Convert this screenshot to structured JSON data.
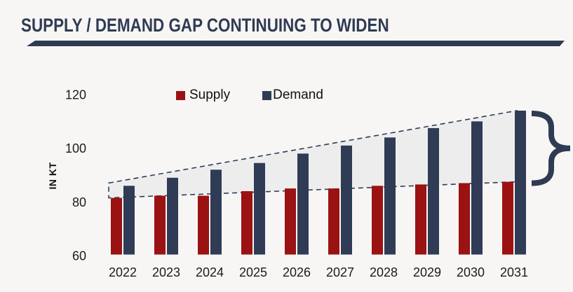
{
  "header": {
    "title": "SUPPLY / DEMAND GAP CONTINUING TO WIDEN"
  },
  "colors": {
    "supply": "#9b1212",
    "demand": "#303c55",
    "accent_navy": "#2e3b52",
    "band_border": "#2e3c55",
    "background": "#f7f6f5",
    "text": "#1b1b1b"
  },
  "chart_data": {
    "type": "bar",
    "title": "SUPPLY / DEMAND GAP CONTINUING TO WIDEN",
    "xlabel": "",
    "ylabel": "IN KT",
    "ylim": [
      60,
      120
    ],
    "yticks": [
      60,
      80,
      100,
      120
    ],
    "grid": false,
    "legend_position": "top-center",
    "categories": [
      "2022",
      "2023",
      "2024",
      "2025",
      "2026",
      "2027",
      "2028",
      "2029",
      "2030",
      "2031"
    ],
    "series": [
      {
        "name": "Supply",
        "color": "#9b1212",
        "values": [
          81.5,
          82.3,
          82.3,
          84,
          85,
          85,
          86,
          86.5,
          87,
          87.5
        ]
      },
      {
        "name": "Demand",
        "color": "#303c55",
        "values": [
          86,
          89,
          92,
          94.5,
          98,
          101,
          104,
          107.5,
          110,
          114
        ]
      }
    ],
    "annotations": {
      "gap_band": "dashed trapezoid spanning the supply-to-demand gap from 2022 to 2031",
      "gap_brace": "curly brace at right marking the 2031 gap"
    }
  }
}
